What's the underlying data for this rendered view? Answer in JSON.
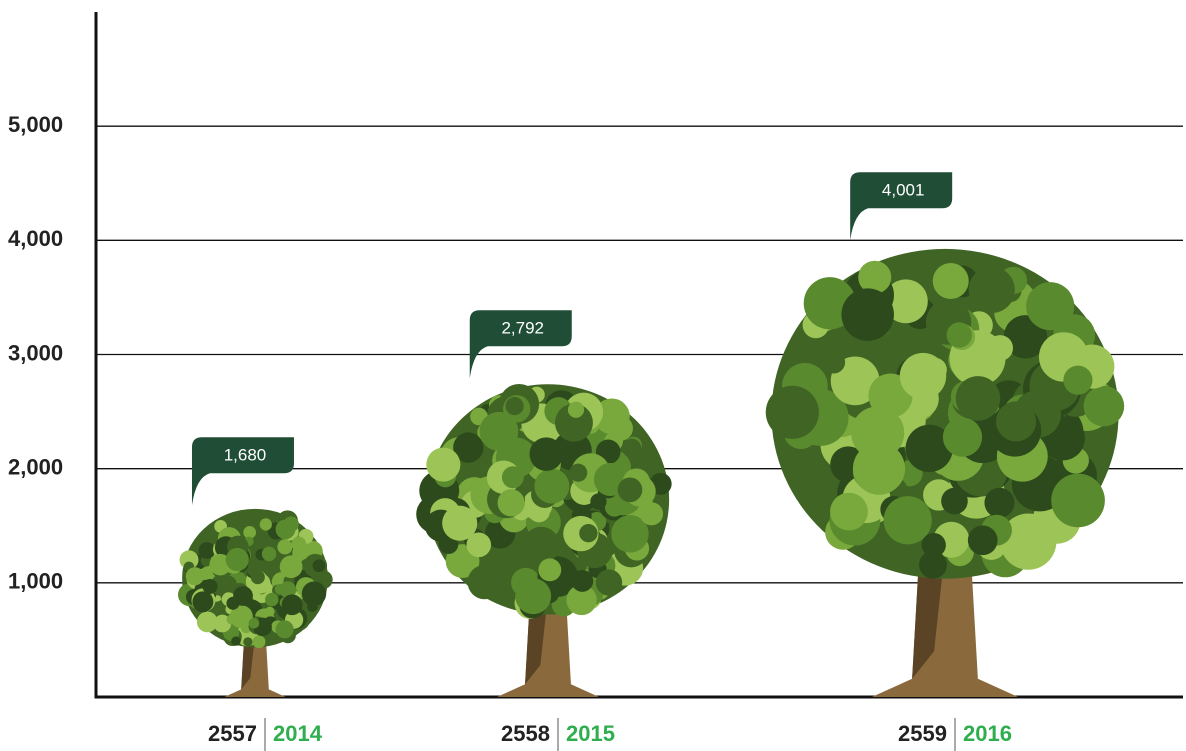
{
  "chart_data": {
    "type": "tree",
    "categories": [
      "2557",
      "2558",
      "2559"
    ],
    "categories_secondary": [
      "2014",
      "2015",
      "2016"
    ],
    "secondary_color": "#2fae4e",
    "values": [
      1680,
      2792,
      4001
    ],
    "value_labels": [
      "1,680",
      "2,792",
      "4,001"
    ],
    "ylim": [
      0,
      6000
    ],
    "yticks": [
      {
        "value": 1000,
        "label": "1,000"
      },
      {
        "value": 2000,
        "label": "2,000"
      },
      {
        "value": 3000,
        "label": "3,000"
      },
      {
        "value": 4000,
        "label": "4,000"
      },
      {
        "value": 5000,
        "label": "5,000"
      }
    ],
    "grid": true,
    "color": "#4d7a2a",
    "label_color": "#1f4d36"
  }
}
